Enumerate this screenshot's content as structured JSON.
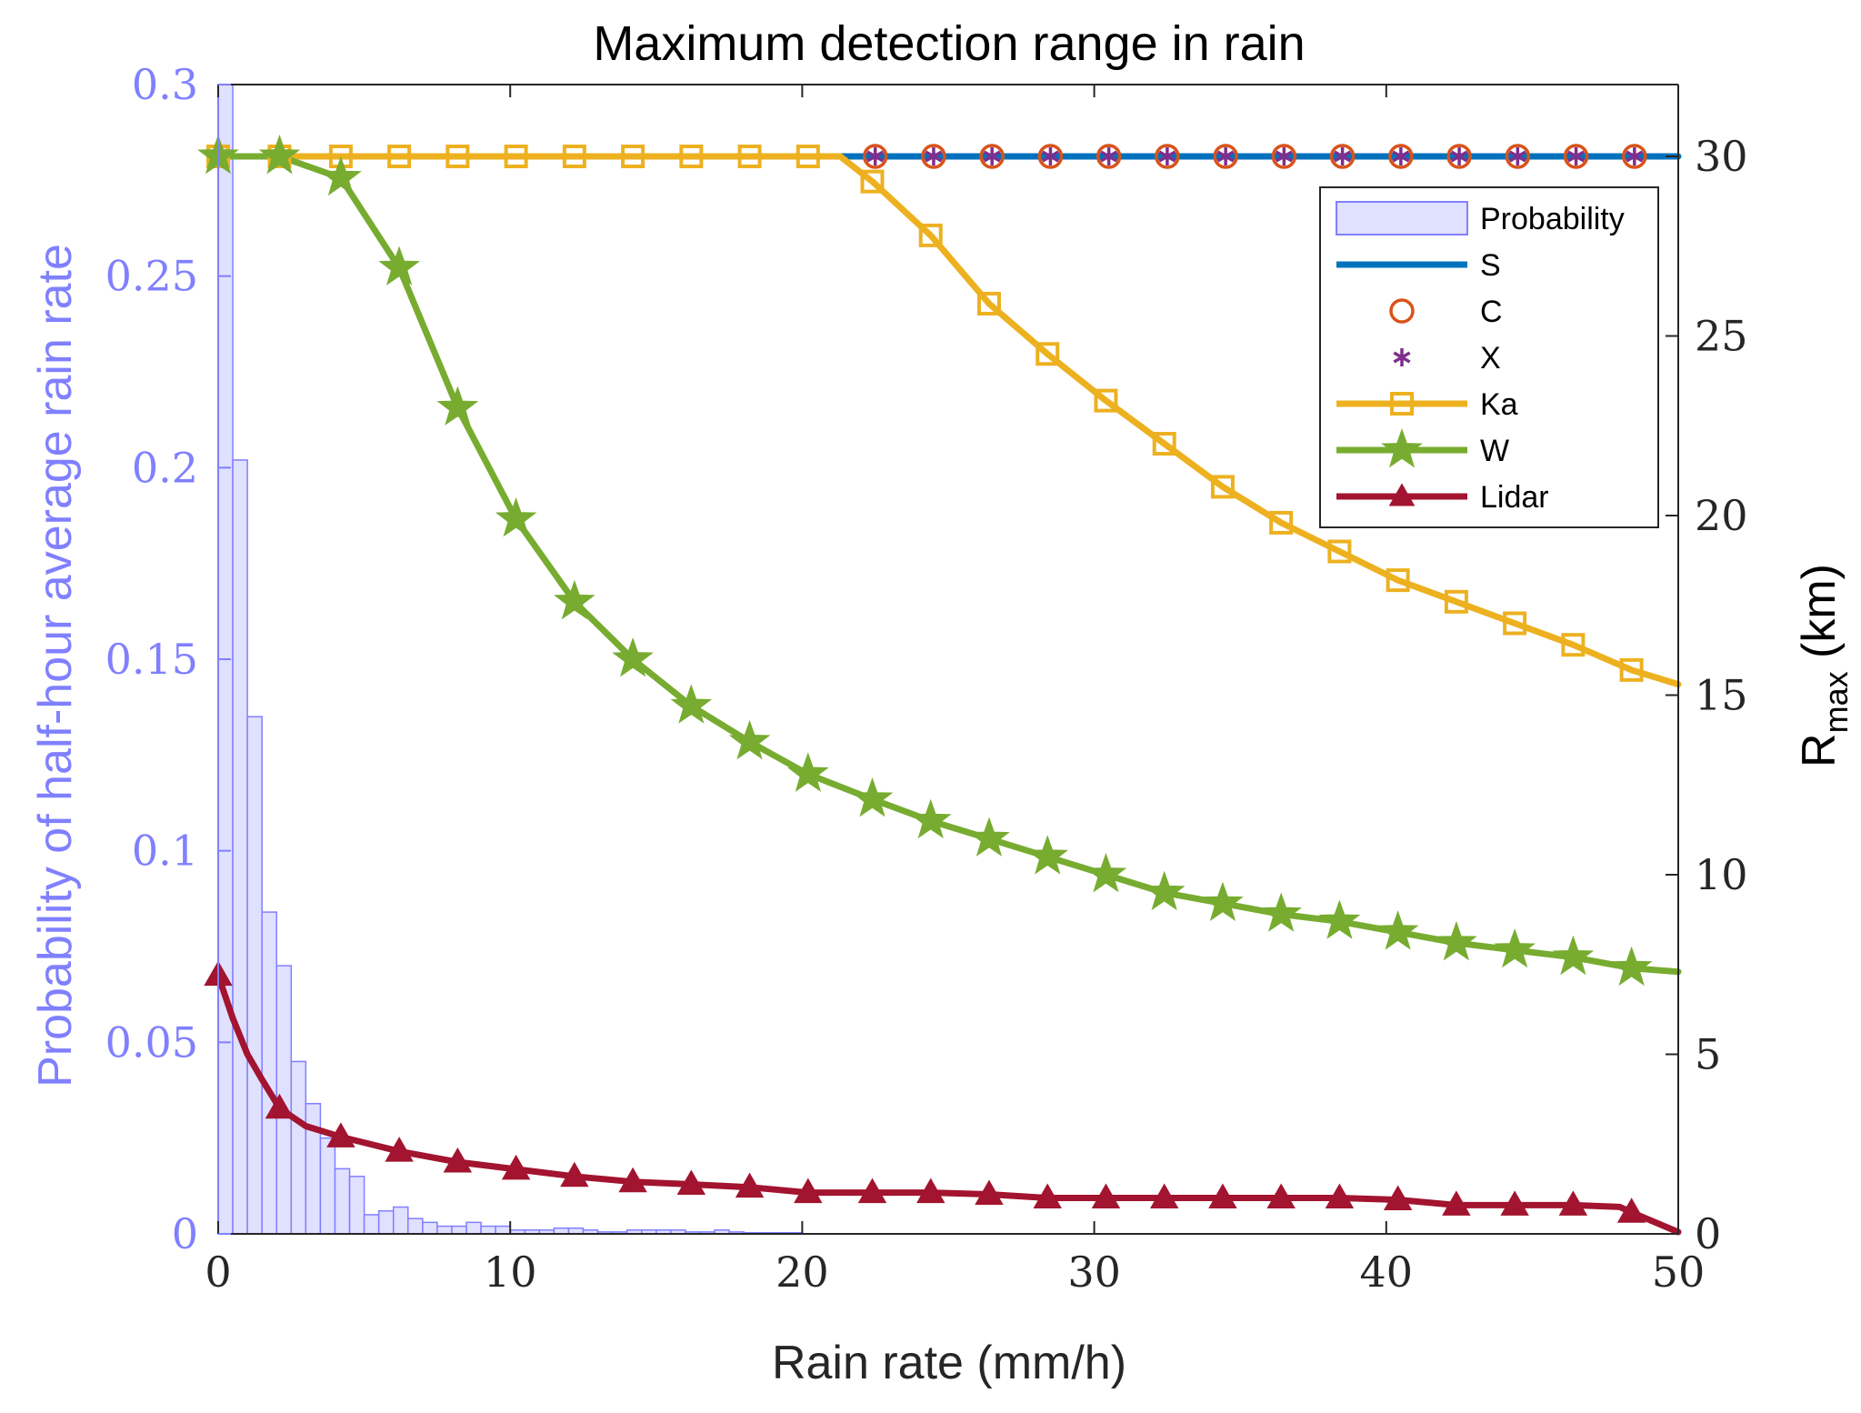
{
  "chart_data": {
    "type": "line",
    "title": "Maximum detection range in rain",
    "xlabel": "Rain rate (mm/h)",
    "ylabel_left": "Probability  of half-hour average rain rate",
    "ylabel_right": "R",
    "ylabel_right_sub": "max",
    "ylabel_right_unit": " (km)",
    "xlim": [
      0,
      50
    ],
    "ylim_left": [
      0,
      0.3
    ],
    "ylim_right": [
      0,
      32
    ],
    "x_ticks": [
      0,
      10,
      20,
      30,
      40,
      50
    ],
    "x_tick_labels": [
      "0",
      "10",
      "20",
      "30",
      "40",
      "50"
    ],
    "y_left_ticks": [
      0,
      0.05,
      0.1,
      0.15,
      0.2,
      0.25,
      0.3
    ],
    "y_left_tick_labels": [
      "0",
      "0.05",
      "0.1",
      "0.15",
      "0.2",
      "0.25",
      "0.3"
    ],
    "y_right_ticks": [
      0,
      5,
      10,
      15,
      20,
      25,
      30
    ],
    "y_right_tick_labels": [
      "0",
      "5",
      "10",
      "15",
      "20",
      "25",
      "30"
    ],
    "legend_position": "top-right",
    "colors": {
      "probability": "#8080ff",
      "probability_fill": "#e0e0ff",
      "S": "#0072bd",
      "C": "#d95319",
      "X": "#7e2f8e",
      "Ka": "#edb120",
      "W": "#77ac30",
      "Lidar": "#a2142f",
      "axis": "#000000",
      "left_axis": "#8080ff"
    },
    "histogram": {
      "name": "Probability",
      "bin_width": 0.5,
      "x_centers": [
        0.25,
        0.75,
        1.25,
        1.75,
        2.25,
        2.75,
        3.25,
        3.75,
        4.25,
        4.75,
        5.25,
        5.75,
        6.25,
        6.75,
        7.25,
        7.75,
        8.25,
        8.75,
        9.25,
        9.75,
        10.25,
        10.75,
        11.25,
        11.75,
        12.25,
        12.75,
        13.25,
        13.75,
        14.25,
        14.75,
        15.25,
        15.75,
        16.25,
        16.75,
        17.25,
        17.75,
        18.25,
        18.75,
        19.25,
        19.75
      ],
      "values": [
        0.3,
        0.202,
        0.135,
        0.084,
        0.07,
        0.045,
        0.034,
        0.025,
        0.017,
        0.015,
        0.005,
        0.006,
        0.007,
        0.004,
        0.003,
        0.002,
        0.002,
        0.003,
        0.002,
        0.002,
        0.001,
        0.001,
        0.001,
        0.0015,
        0.0015,
        0.001,
        0.0005,
        0.0005,
        0.001,
        0.001,
        0.001,
        0.001,
        0.0005,
        0.0005,
        0.001,
        0.0005,
        0.0003,
        0.0003,
        0.0003,
        0.0003
      ]
    },
    "series": [
      {
        "name": "S",
        "marker": "none",
        "x": [
          0,
          50
        ],
        "y": [
          30,
          30
        ]
      },
      {
        "name": "C",
        "marker": "circle",
        "x": [
          22.5,
          24.5,
          26.5,
          28.5,
          30.5,
          32.5,
          34.5,
          36.5,
          38.5,
          40.5,
          42.5,
          44.5,
          46.5,
          48.5
        ],
        "y": [
          30,
          30,
          30,
          30,
          30,
          30,
          30,
          30,
          30,
          30,
          30,
          30,
          30,
          30
        ]
      },
      {
        "name": "X",
        "marker": "asterisk",
        "x": [
          22.5,
          24.5,
          26.5,
          28.5,
          30.5,
          32.5,
          34.5,
          36.5,
          38.5,
          40.5,
          42.5,
          44.5,
          46.5,
          48.5
        ],
        "y": [
          30,
          30,
          30,
          30,
          30,
          30,
          30,
          30,
          30,
          30,
          30,
          30,
          30,
          30
        ]
      },
      {
        "name": "Ka",
        "marker": "square",
        "x": [
          0,
          2.1,
          4.2,
          6.2,
          8.2,
          10.2,
          12.2,
          14.2,
          16.2,
          18.2,
          20.2,
          22.4,
          24.4,
          26.4,
          28.4,
          30.4,
          32.4,
          34.4,
          36.4,
          38.4,
          40.4,
          42.4,
          44.4,
          46.4,
          48.4
        ],
        "line_x": [
          0,
          2.1,
          4.2,
          6.2,
          8.2,
          10.2,
          12.2,
          14.2,
          16.2,
          18.2,
          20.2,
          21.3,
          22.4,
          24.4,
          26.4,
          28.4,
          30.4,
          32.4,
          34.4,
          36.4,
          38.4,
          40.4,
          42.4,
          44.4,
          46.4,
          48.4,
          50
        ],
        "line_y": [
          30,
          30,
          30,
          30,
          30,
          30,
          30,
          30,
          30,
          30,
          30,
          30,
          29.3,
          27.8,
          25.9,
          24.5,
          23.2,
          22,
          20.8,
          19.8,
          19,
          18.2,
          17.6,
          17,
          16.4,
          15.7,
          15.3
        ],
        "y": [
          30,
          30,
          30,
          30,
          30,
          30,
          30,
          30,
          30,
          30,
          30,
          29.3,
          27.8,
          25.9,
          24.5,
          23.2,
          22,
          20.8,
          19.8,
          19,
          18.2,
          17.6,
          17,
          16.4,
          15.7
        ]
      },
      {
        "name": "W",
        "marker": "pentagram",
        "x": [
          0,
          2.1,
          4.2,
          6.2,
          8.2,
          10.2,
          12.2,
          14.2,
          16.2,
          18.2,
          20.2,
          22.4,
          24.4,
          26.4,
          28.4,
          30.4,
          32.4,
          34.4,
          36.4,
          38.4,
          40.4,
          42.4,
          44.4,
          46.4,
          48.4
        ],
        "line_x": [
          0,
          2.1,
          4.2,
          6.2,
          8.2,
          10.2,
          12.2,
          14.2,
          16.2,
          18.2,
          20.2,
          22.4,
          24.4,
          26.4,
          28.4,
          30.4,
          32.4,
          34.4,
          36.4,
          38.4,
          40.4,
          42.4,
          44.4,
          46.4,
          48.4,
          50
        ],
        "line_y": [
          30,
          30,
          29.4,
          26.9,
          23,
          19.9,
          17.6,
          16,
          14.7,
          13.7,
          12.8,
          12.1,
          11.5,
          11,
          10.5,
          10,
          9.5,
          9.2,
          8.9,
          8.7,
          8.4,
          8.1,
          7.9,
          7.7,
          7.4,
          7.3
        ],
        "y": [
          30,
          30,
          29.4,
          26.9,
          23,
          19.9,
          17.6,
          16,
          14.7,
          13.7,
          12.8,
          12.1,
          11.5,
          11,
          10.5,
          10,
          9.5,
          9.2,
          8.9,
          8.7,
          8.4,
          8.1,
          7.9,
          7.7,
          7.4
        ]
      },
      {
        "name": "Lidar",
        "marker": "triangle",
        "x": [
          0,
          2.1,
          4.2,
          6.2,
          8.2,
          10.2,
          12.2,
          14.2,
          16.2,
          18.2,
          20.2,
          22.4,
          24.4,
          26.4,
          28.4,
          30.4,
          32.4,
          34.4,
          36.4,
          38.4,
          40.4,
          42.4,
          44.4,
          46.4,
          48.4
        ],
        "line_x": [
          0,
          0.5,
          1.0,
          1.5,
          2.1,
          3.0,
          4.2,
          6.2,
          8.2,
          10.2,
          12.2,
          14.2,
          16.2,
          18.2,
          20.2,
          22.4,
          24.4,
          26.4,
          28.4,
          30.4,
          32.4,
          34.4,
          36.4,
          38.4,
          40.4,
          42.4,
          44.4,
          46.4,
          48.0,
          48.4,
          50
        ],
        "line_y": [
          7.2,
          6.0,
          5.0,
          4.3,
          3.5,
          3.0,
          2.7,
          2.3,
          2.0,
          1.8,
          1.6,
          1.45,
          1.38,
          1.3,
          1.15,
          1.15,
          1.15,
          1.1,
          1.0,
          1.0,
          1.0,
          1.0,
          1.0,
          1.0,
          0.95,
          0.8,
          0.8,
          0.8,
          0.75,
          0.6,
          0.05
        ],
        "y": [
          7.2,
          3.5,
          2.7,
          2.3,
          2.0,
          1.8,
          1.6,
          1.45,
          1.38,
          1.3,
          1.15,
          1.15,
          1.15,
          1.1,
          1.0,
          1.0,
          1.0,
          1.0,
          1.0,
          1.0,
          0.95,
          0.8,
          0.8,
          0.8,
          0.6
        ]
      }
    ],
    "legend_entries": [
      "Probability",
      "S",
      "C",
      "X",
      "Ka",
      "W",
      "Lidar"
    ]
  }
}
